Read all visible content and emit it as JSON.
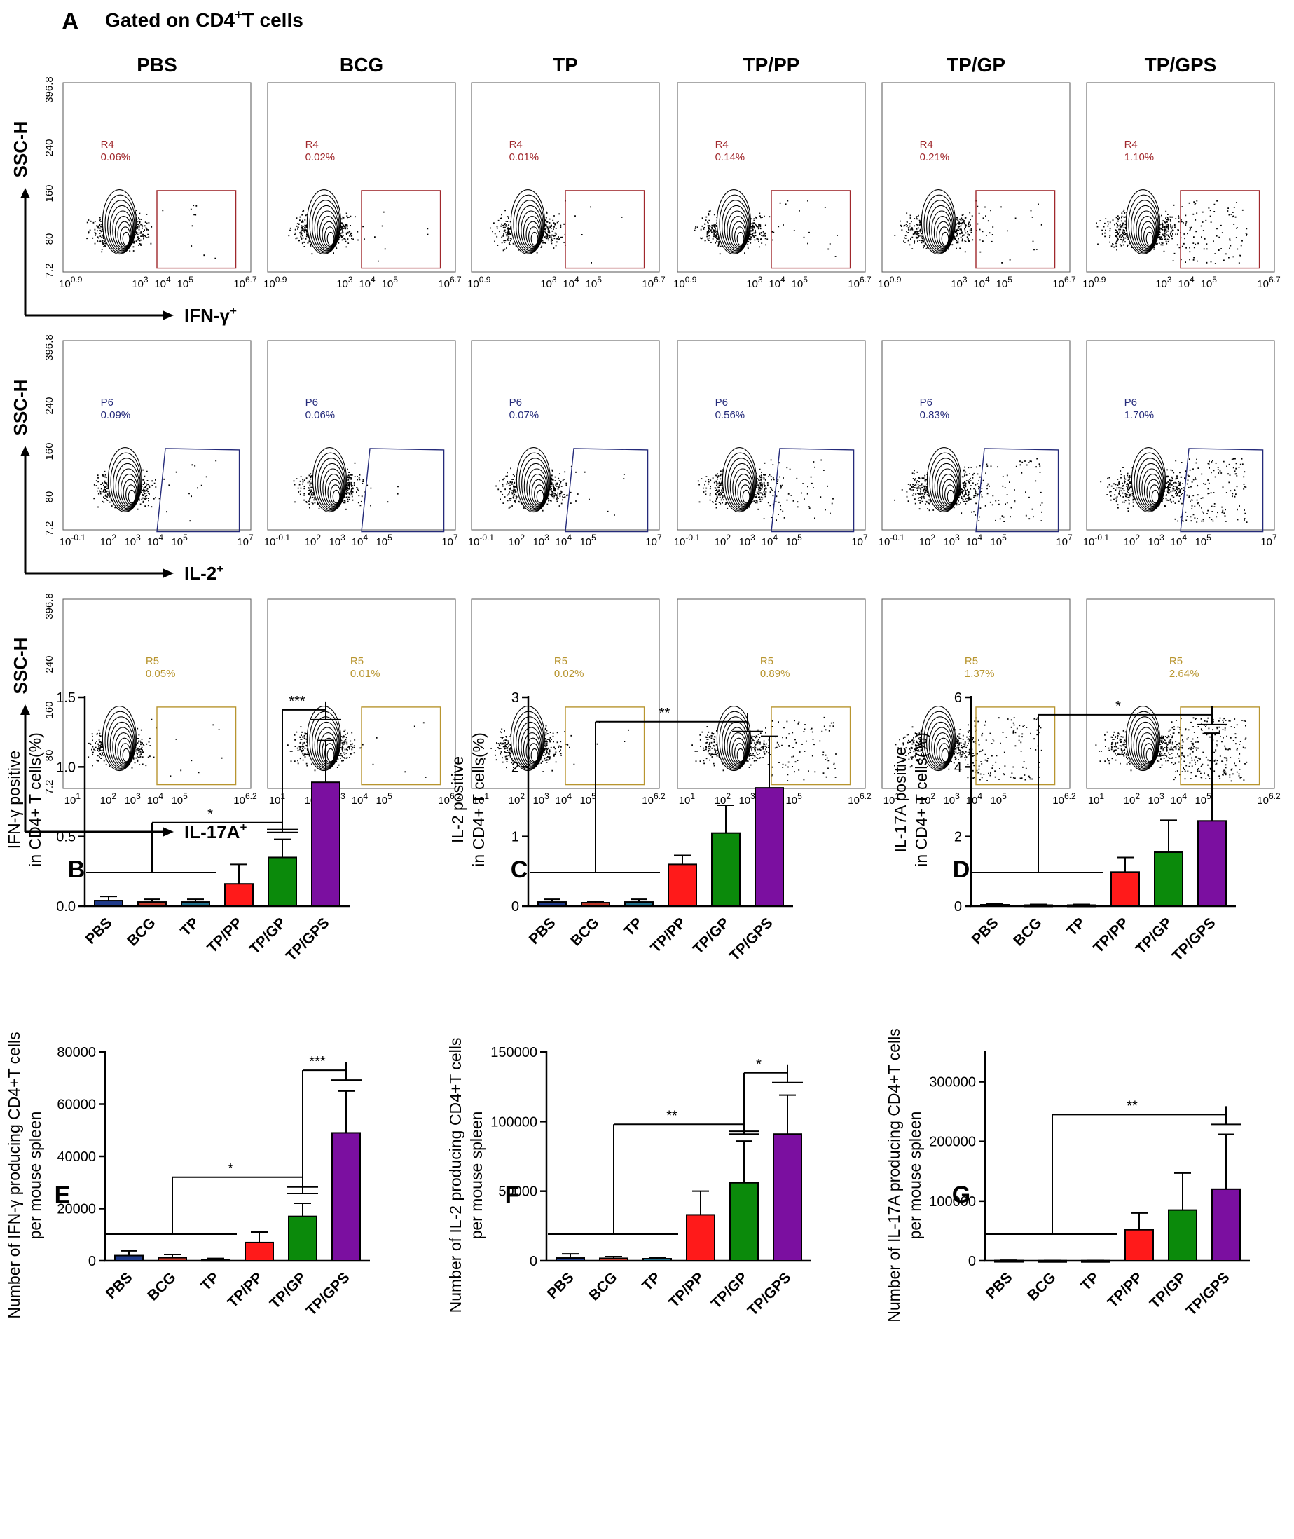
{
  "panel_a": {
    "label": "A",
    "title": "Gated on CD4",
    "title_sup": "+",
    "title_suffix": "T cells",
    "columns": [
      "PBS",
      "BCG",
      "TP",
      "TP/PP",
      "TP/GP",
      "TP/GPS"
    ],
    "y_axis_label": "SSC-H",
    "y_ticks": [
      "7.2",
      "80",
      "160",
      "240",
      "396.8"
    ],
    "rows": [
      {
        "marker": "IFN-γ",
        "marker_sup": "+",
        "gate_name": "R4",
        "gate_color": "#a0282c",
        "gate_shape": "rect",
        "x_ticks": [
          "10^0.9",
          "10^3",
          "10^4",
          "10^5",
          "10^6.7"
        ],
        "percents": [
          "0.06%",
          "0.02%",
          "0.01%",
          "0.14%",
          "0.21%",
          "1.10%"
        ]
      },
      {
        "marker": "IL-2",
        "marker_sup": "+",
        "gate_name": "P6",
        "gate_color": "#242a7a",
        "gate_shape": "trapezoid",
        "x_ticks": [
          "10^-0.1",
          "10^2",
          "10^3",
          "10^4",
          "10^5",
          "10^7"
        ],
        "percents": [
          "0.09%",
          "0.06%",
          "0.07%",
          "0.56%",
          "0.83%",
          "1.70%"
        ]
      },
      {
        "marker": "IL-17A",
        "marker_sup": "+",
        "gate_name": "R5",
        "gate_color": "#b8952f",
        "gate_shape": "rect",
        "x_ticks": [
          "10^1",
          "10^2",
          "10^3",
          "10^4",
          "10^5",
          "10^6.2"
        ],
        "percents": [
          "0.05%",
          "0.01%",
          "0.02%",
          "0.89%",
          "1.37%",
          "2.64%"
        ]
      }
    ]
  },
  "chart_data": [
    {
      "panel": "B",
      "type": "bar",
      "categories": [
        "PBS",
        "BCG",
        "TP",
        "TP/PP",
        "TP/GP",
        "TP/GPS"
      ],
      "values": [
        0.04,
        0.03,
        0.03,
        0.16,
        0.35,
        0.89
      ],
      "errors": [
        0.03,
        0.02,
        0.02,
        0.14,
        0.13,
        0.3
      ],
      "ylabel_lines": [
        "IFN-γ positive",
        "in CD4+ T cells(%)"
      ],
      "ylim": [
        0,
        1.5
      ],
      "yticks": [
        0,
        0.5,
        1.0,
        1.5
      ],
      "ytick_labels": [
        "0.0",
        "0.5",
        "1.0",
        "1.5"
      ],
      "significance": [
        {
          "label": "*",
          "group_start": 0,
          "group_end": 2,
          "target": 4,
          "level": 0.6
        },
        {
          "label": "***",
          "group_start": 4,
          "group_end": 4,
          "target": 5,
          "level": 1.41
        }
      ]
    },
    {
      "panel": "C",
      "type": "bar",
      "categories": [
        "PBS",
        "BCG",
        "TP",
        "TP/PP",
        "TP/GP",
        "TP/GPS"
      ],
      "values": [
        0.06,
        0.05,
        0.06,
        0.6,
        1.05,
        1.7
      ],
      "errors": [
        0.04,
        0.02,
        0.04,
        0.13,
        0.4,
        0.74
      ],
      "ylabel_lines": [
        "IL-2 positive",
        "in CD4+ T cells(%)"
      ],
      "ylim": [
        0,
        3
      ],
      "yticks": [
        0,
        1,
        2,
        3
      ],
      "ytick_labels": [
        "0",
        "1",
        "2",
        "3"
      ],
      "significance": [
        {
          "label": "**",
          "group_start": 0,
          "group_end": 2,
          "target": 4.5,
          "level": 2.65
        }
      ]
    },
    {
      "panel": "D",
      "type": "bar",
      "categories": [
        "PBS",
        "BCG",
        "TP",
        "TP/PP",
        "TP/GP",
        "TP/GPS"
      ],
      "values": [
        0.04,
        0.03,
        0.03,
        0.98,
        1.55,
        2.45
      ],
      "errors": [
        0.02,
        0.02,
        0.02,
        0.42,
        0.92,
        2.52
      ],
      "ylabel_lines": [
        "IL-17A positive",
        "in CD4+ T cells(%)"
      ],
      "ylim": [
        0,
        6
      ],
      "yticks": [
        0,
        2,
        4,
        6
      ],
      "ytick_labels": [
        "0",
        "2",
        "4",
        "6"
      ],
      "significance": [
        {
          "label": "*",
          "group_start": 0,
          "group_end": 2,
          "target": 5,
          "level": 5.5
        }
      ]
    },
    {
      "panel": "E",
      "type": "bar",
      "categories": [
        "PBS",
        "BCG",
        "TP",
        "TP/PP",
        "TP/GP",
        "TP/GPS"
      ],
      "values": [
        2000,
        1200,
        500,
        7000,
        17000,
        49000
      ],
      "errors": [
        1800,
        1200,
        400,
        4000,
        5000,
        16000
      ],
      "ylabel_lines": [
        "Number of IFN-γ producing CD4+T cells",
        "per mouse spleen"
      ],
      "ylim": [
        0,
        80000
      ],
      "yticks": [
        0,
        20000,
        40000,
        60000,
        80000
      ],
      "ytick_labels": [
        "0",
        "20000",
        "40000",
        "60000",
        "80000"
      ],
      "significance": [
        {
          "label": "*",
          "group_start": 0,
          "group_end": 2,
          "target": 4,
          "level": 32000
        },
        {
          "label": "***",
          "group_start": 4,
          "group_end": 4,
          "target": 5,
          "level": 73000
        }
      ]
    },
    {
      "panel": "F",
      "type": "bar",
      "categories": [
        "PBS",
        "BCG",
        "TP",
        "TP/PP",
        "TP/GP",
        "TP/GPS"
      ],
      "values": [
        2000,
        1800,
        1500,
        33000,
        56000,
        91000
      ],
      "errors": [
        3000,
        1200,
        1000,
        17000,
        30000,
        28000
      ],
      "ylabel_lines": [
        "Number of IL-2 producing CD4+T cells",
        "per mouse spleen"
      ],
      "ylim": [
        0,
        150000
      ],
      "yticks": [
        0,
        50000,
        100000,
        150000
      ],
      "ytick_labels": [
        "0",
        "50000",
        "100000",
        "150000"
      ],
      "significance": [
        {
          "label": "**",
          "group_start": 0,
          "group_end": 2,
          "target": 4,
          "level": 98000
        },
        {
          "label": "*",
          "group_start": 4,
          "group_end": 4,
          "target": 5,
          "level": 135000
        }
      ]
    },
    {
      "panel": "G",
      "type": "bar",
      "categories": [
        "PBS",
        "BCG",
        "TP",
        "TP/PP",
        "TP/GP",
        "TP/GPS"
      ],
      "values": [
        500,
        300,
        300,
        52000,
        85000,
        120000
      ],
      "errors": [
        500,
        300,
        300,
        28000,
        62000,
        92000
      ],
      "ylabel_lines": [
        "Number of IL-17A producing CD4+T cells",
        "per mouse spleen"
      ],
      "ylim": [
        0,
        350000
      ],
      "yticks": [
        0,
        100000,
        200000,
        300000
      ],
      "ytick_labels": [
        "0",
        "100000",
        "200000",
        "300000"
      ],
      "significance": [
        {
          "label": "**",
          "group_start": 0,
          "group_end": 2,
          "target": 5,
          "level": 245000
        }
      ]
    }
  ],
  "colors": {
    "bars": [
      "#1f3a8a",
      "#c0392b",
      "#1f6f8b",
      "#ff1a1a",
      "#0b8a0b",
      "#7b0fa0"
    ],
    "axis": "#000000"
  }
}
